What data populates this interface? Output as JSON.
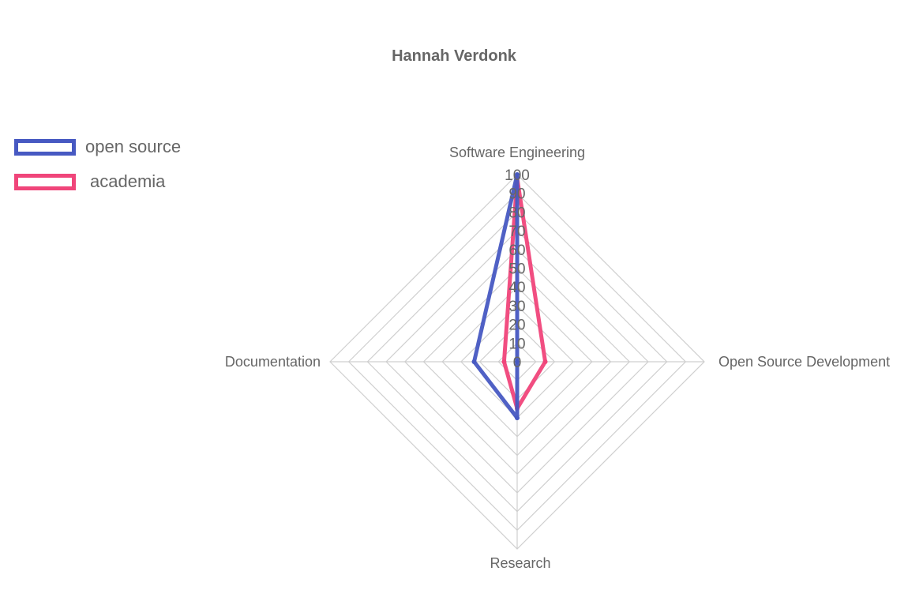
{
  "chart_data": {
    "type": "radar",
    "title": "Hannah Verdonk",
    "axes": [
      "Software Engineering",
      "Open Source Development",
      "Research",
      "Documentation"
    ],
    "r_range": [
      0,
      100
    ],
    "ticks": [
      "0",
      "10",
      "20",
      "30",
      "40",
      "50",
      "60",
      "70",
      "80",
      "90",
      "100"
    ],
    "grid": true,
    "legend_position": "top-left",
    "series": [
      {
        "name": "open source",
        "color": "#4759c2",
        "values": [
          100,
          0,
          30,
          23
        ]
      },
      {
        "name": "academia",
        "color": "#f0457a",
        "values": [
          98,
          15,
          25,
          7
        ]
      }
    ]
  }
}
